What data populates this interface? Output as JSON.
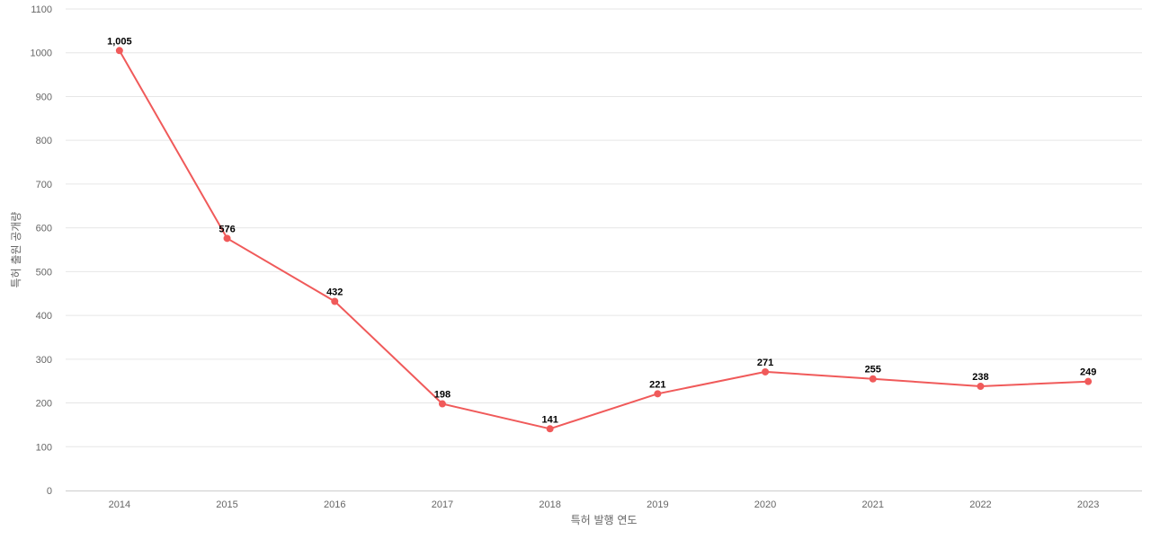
{
  "chart_data": {
    "type": "line",
    "title": "",
    "xlabel": "특허 발행 연도",
    "ylabel": "특허 출원 공개량",
    "x": [
      "2014",
      "2015",
      "2016",
      "2017",
      "2018",
      "2019",
      "2020",
      "2021",
      "2022",
      "2023"
    ],
    "series": [
      {
        "values": [
          1005,
          576,
          432,
          198,
          141,
          221,
          271,
          255,
          238,
          249
        ],
        "labels": [
          "1,005",
          "576",
          "432",
          "198",
          "141",
          "221",
          "271",
          "255",
          "238",
          "249"
        ],
        "color": "#f05a5a"
      }
    ],
    "ylim": [
      0,
      1100
    ],
    "yticks": [
      0,
      100,
      200,
      300,
      400,
      500,
      600,
      700,
      800,
      900,
      1000,
      1100
    ],
    "grid": true,
    "legend": "none"
  }
}
